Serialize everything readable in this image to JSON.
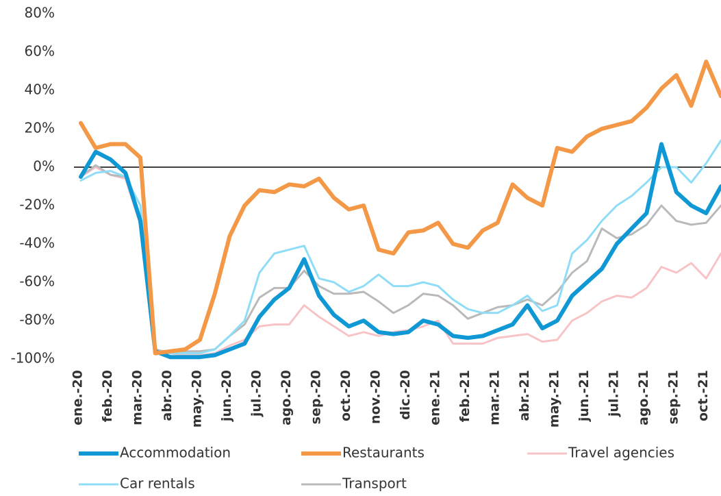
{
  "chart_data": {
    "type": "line",
    "categories": [
      "ene.-20",
      null,
      "feb.-20",
      null,
      "mar.-20",
      null,
      "abr.-20",
      null,
      "may.-20",
      null,
      "jun.-20",
      null,
      "jul.-20",
      null,
      "ago.-20",
      null,
      "sep.-20",
      null,
      "oct.-20",
      null,
      "nov.-20",
      null,
      "dic.-20",
      null,
      "ene.-21",
      null,
      "feb.-21",
      null,
      "mar.-21",
      null,
      "abr.-21",
      null,
      "may.-21",
      null,
      "jun.-21",
      null,
      "jul.-21",
      null,
      "ago.-21",
      null,
      "sep.-21",
      null,
      "oct.-21",
      null
    ],
    "series": [
      {
        "name": "Accommodation",
        "color": "#0f98d3",
        "values": [
          -5,
          8,
          4,
          -3,
          -28,
          -96,
          -99,
          -99,
          -99,
          -98,
          -95,
          -92,
          -78,
          -69,
          -63,
          -48,
          -67,
          -77,
          -83,
          -80,
          -86,
          -87,
          -86,
          -80,
          -82,
          -88,
          -89,
          -88,
          -85,
          -82,
          -72,
          -84,
          -80,
          -67,
          -60,
          -53,
          -40,
          -32,
          -24,
          12,
          -13,
          -20,
          -24,
          -10
        ]
      },
      {
        "name": "Restaurants",
        "color": "#f39847",
        "values": [
          23,
          10,
          12,
          12,
          5,
          -97,
          -96,
          -95,
          -90,
          -66,
          -36,
          -20,
          -12,
          -13,
          -9,
          -10,
          -6,
          -16,
          -22,
          -20,
          -43,
          -45,
          -34,
          -33,
          -29,
          -40,
          -42,
          -33,
          -29,
          -9,
          -16,
          -20,
          10,
          8,
          16,
          20,
          22,
          24,
          31,
          41,
          48,
          32,
          55,
          37
        ]
      },
      {
        "name": "Travel agencies",
        "color": "#f8c3c7",
        "values": [
          -5,
          0,
          -4,
          -6,
          -30,
          -96,
          -97,
          -98,
          -98,
          -97,
          -93,
          -90,
          -83,
          -82,
          -82,
          -72,
          -78,
          -83,
          -88,
          -86,
          -88,
          -86,
          -85,
          -83,
          -80,
          -92,
          -92,
          -92,
          -89,
          -88,
          -87,
          -91,
          -90,
          -80,
          -76,
          -70,
          -67,
          -68,
          -63,
          -52,
          -55,
          -50,
          -58,
          -45
        ]
      },
      {
        "name": "Car rentals",
        "color": "#8fdcf6",
        "values": [
          -7,
          -3,
          -2,
          -5,
          -20,
          -96,
          -97,
          -97,
          -97,
          -95,
          -88,
          -80,
          -55,
          -45,
          -43,
          -41,
          -58,
          -60,
          -65,
          -62,
          -56,
          -62,
          -62,
          -60,
          -62,
          -69,
          -74,
          -76,
          -76,
          -72,
          -67,
          -75,
          -72,
          -45,
          -38,
          -28,
          -20,
          -15,
          -8,
          0,
          0,
          -8,
          2,
          14
        ]
      },
      {
        "name": "Transport",
        "color": "#b9b9b9",
        "values": [
          -5,
          1,
          -4,
          -5,
          -28,
          -95,
          -97,
          -96,
          -96,
          -95,
          -88,
          -82,
          -68,
          -63,
          -63,
          -54,
          -62,
          -66,
          -66,
          -65,
          -70,
          -76,
          -72,
          -66,
          -67,
          -72,
          -79,
          -76,
          -73,
          -72,
          -69,
          -72,
          -65,
          -55,
          -49,
          -32,
          -37,
          -35,
          -30,
          -20,
          -28,
          -30,
          -29,
          -20
        ]
      }
    ],
    "ylim": [
      -100,
      80
    ],
    "yticks": [
      {
        "value": -100,
        "label": "-100%"
      },
      {
        "value": -80,
        "label": "-80%"
      },
      {
        "value": -60,
        "label": "-60%"
      },
      {
        "value": -40,
        "label": "-40%"
      },
      {
        "value": -20,
        "label": "-20%"
      },
      {
        "value": 0,
        "label": "0%"
      },
      {
        "value": 20,
        "label": "20%"
      },
      {
        "value": 40,
        "label": "40%"
      },
      {
        "value": 60,
        "label": "60%"
      },
      {
        "value": 80,
        "label": "80%"
      }
    ],
    "grid": false,
    "legend": "bottom"
  }
}
